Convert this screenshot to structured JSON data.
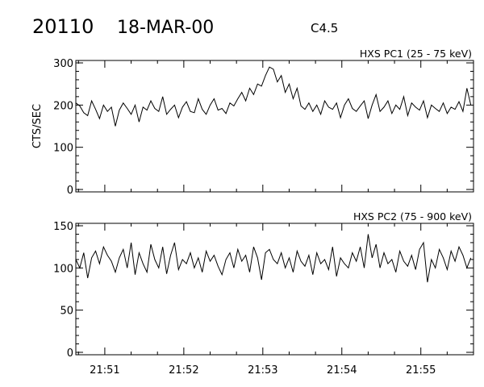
{
  "header": {
    "event_id": "20110",
    "date": "18-MAR-00",
    "goes_class": "C4.5"
  },
  "chart_data": [
    {
      "type": "line",
      "title": "HXS PC1 (25 - 75 keV)",
      "ylabel": "CTS/SEC",
      "xlabel": "",
      "ylim": [
        0,
        300
      ],
      "yticks": [
        "0",
        "100",
        "200",
        "300"
      ],
      "xlim": [
        "21:50:38",
        "21:55:40"
      ],
      "xticks": [
        "21:51",
        "21:52",
        "21:53",
        "21:54",
        "21:55"
      ],
      "x_start": "21:50:38",
      "x_step_seconds": 3,
      "color": "#000000",
      "values": [
        205,
        198,
        182,
        175,
        210,
        190,
        168,
        200,
        185,
        195,
        150,
        188,
        205,
        192,
        178,
        200,
        160,
        195,
        188,
        210,
        192,
        185,
        220,
        178,
        190,
        200,
        170,
        195,
        208,
        185,
        182,
        215,
        190,
        178,
        200,
        215,
        188,
        192,
        180,
        205,
        198,
        215,
        230,
        210,
        240,
        225,
        250,
        245,
        270,
        290,
        285,
        255,
        270,
        230,
        250,
        215,
        240,
        198,
        190,
        205,
        185,
        200,
        178,
        210,
        195,
        190,
        205,
        170,
        200,
        215,
        192,
        185,
        198,
        210,
        168,
        200,
        225,
        185,
        195,
        210,
        180,
        200,
        190,
        220,
        175,
        205,
        195,
        188,
        210,
        170,
        200,
        192,
        185,
        205,
        180,
        195,
        190,
        208,
        185,
        240,
        200
      ]
    },
    {
      "type": "line",
      "title": "HXS PC2 (75 - 900 keV)",
      "ylabel": "",
      "xlabel": "",
      "ylim": [
        0,
        150
      ],
      "yticks": [
        "0",
        "50",
        "100",
        "150"
      ],
      "xlim": [
        "21:50:38",
        "21:55:40"
      ],
      "xticks": [
        "21:51",
        "21:52",
        "21:53",
        "21:54",
        "21:55"
      ],
      "x_start": "21:50:38",
      "x_step_seconds": 3,
      "color": "#000000",
      "values": [
        110,
        100,
        118,
        88,
        112,
        120,
        105,
        125,
        115,
        108,
        95,
        112,
        122,
        100,
        130,
        92,
        118,
        105,
        95,
        128,
        110,
        100,
        125,
        93,
        115,
        130,
        98,
        110,
        105,
        118,
        100,
        112,
        95,
        120,
        108,
        115,
        102,
        92,
        110,
        118,
        100,
        122,
        108,
        115,
        95,
        125,
        112,
        86,
        118,
        122,
        110,
        105,
        118,
        100,
        112,
        95,
        120,
        108,
        102,
        115,
        92,
        118,
        105,
        110,
        98,
        125,
        90,
        112,
        105,
        100,
        118,
        108,
        125,
        100,
        140,
        112,
        128,
        100,
        118,
        105,
        110,
        95,
        120,
        108,
        102,
        115,
        98,
        122,
        130,
        83,
        110,
        100,
        122,
        112,
        98,
        120,
        108,
        125,
        115,
        100,
        112
      ]
    }
  ]
}
